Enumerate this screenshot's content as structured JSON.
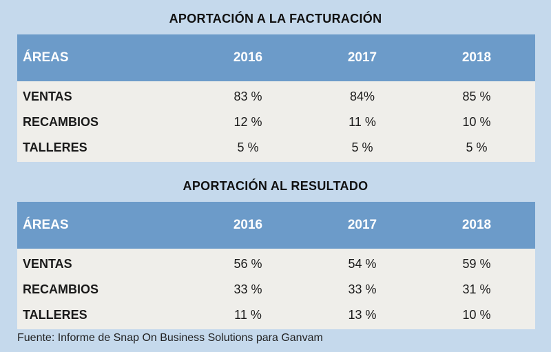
{
  "chart_data": [
    {
      "type": "table",
      "title": "APORTACIÓN A LA FACTURACIÓN",
      "columns": [
        "ÁREAS",
        "2016",
        "2017",
        "2018"
      ],
      "rows": [
        {
          "area": "VENTAS",
          "values": [
            "83 %",
            "84%",
            "85 %"
          ]
        },
        {
          "area": "RECAMBIOS",
          "values": [
            "12 %",
            "11 %",
            "10 %"
          ]
        },
        {
          "area": "TALLERES",
          "values": [
            "5 %",
            "5 %",
            "5 %"
          ]
        }
      ]
    },
    {
      "type": "table",
      "title": "APORTACIÓN AL RESULTADO",
      "columns": [
        "ÁREAS",
        "2016",
        "2017",
        "2018"
      ],
      "rows": [
        {
          "area": "VENTAS",
          "values": [
            "56 %",
            "54 %",
            "59 %"
          ]
        },
        {
          "area": "RECAMBIOS",
          "values": [
            "33 %",
            "33 %",
            "31 %"
          ]
        },
        {
          "area": "TALLERES",
          "values": [
            "11 %",
            "13 %",
            "10 %"
          ]
        }
      ]
    }
  ],
  "source": "Fuente: Informe de Snap On Business Solutions para Ganvam"
}
